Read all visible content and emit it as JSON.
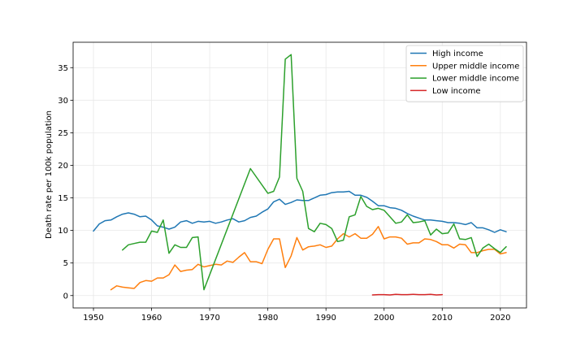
{
  "chart_data": {
    "type": "line",
    "title": "",
    "xlabel": "",
    "ylabel": "Death rate per 100k population",
    "xlim": [
      1946.5,
      2024.5
    ],
    "ylim": [
      -1.9,
      38.9
    ],
    "xticks": [
      1950,
      1960,
      1970,
      1980,
      1990,
      2000,
      2010,
      2020
    ],
    "yticks": [
      0,
      5,
      10,
      15,
      20,
      25,
      30,
      35
    ],
    "grid": true,
    "legend_position": "top-right",
    "series": [
      {
        "name": "High income",
        "color": "#1f77b4",
        "x": [
          1950,
          1951,
          1952,
          1953,
          1954,
          1955,
          1956,
          1957,
          1958,
          1959,
          1960,
          1961,
          1962,
          1963,
          1964,
          1965,
          1966,
          1967,
          1968,
          1969,
          1970,
          1971,
          1972,
          1973,
          1974,
          1975,
          1976,
          1977,
          1978,
          1979,
          1980,
          1981,
          1982,
          1983,
          1984,
          1985,
          1986,
          1987,
          1988,
          1989,
          1990,
          1991,
          1992,
          1993,
          1994,
          1995,
          1996,
          1997,
          1998,
          1999,
          2000,
          2001,
          2002,
          2003,
          2004,
          2005,
          2006,
          2007,
          2008,
          2009,
          2010,
          2011,
          2012,
          2013,
          2014,
          2015,
          2016,
          2017,
          2018,
          2019,
          2020,
          2021
        ],
        "y": [
          9.9,
          11.0,
          11.5,
          11.6,
          12.1,
          12.5,
          12.7,
          12.5,
          12.1,
          12.2,
          11.6,
          10.7,
          10.5,
          10.2,
          10.5,
          11.3,
          11.5,
          11.1,
          11.4,
          11.3,
          11.4,
          11.1,
          11.3,
          11.6,
          11.8,
          11.3,
          11.5,
          12.0,
          12.2,
          12.8,
          13.3,
          14.4,
          14.8,
          14.0,
          14.3,
          14.7,
          14.6,
          14.6,
          15.0,
          15.4,
          15.5,
          15.8,
          15.9,
          15.9,
          16.0,
          15.4,
          15.4,
          15.1,
          14.5,
          13.8,
          13.8,
          13.5,
          13.4,
          13.1,
          12.6,
          12.2,
          11.9,
          11.6,
          11.6,
          11.5,
          11.4,
          11.2,
          11.2,
          11.1,
          10.9,
          11.2,
          10.4,
          10.4,
          10.1,
          9.7,
          10.1,
          9.8
        ]
      },
      {
        "name": "Upper middle income",
        "color": "#ff7f0e",
        "x": [
          1953,
          1954,
          1955,
          1956,
          1957,
          1958,
          1959,
          1960,
          1961,
          1962,
          1963,
          1964,
          1965,
          1966,
          1967,
          1968,
          1969,
          1970,
          1971,
          1972,
          1973,
          1974,
          1975,
          1976,
          1977,
          1978,
          1979,
          1980,
          1981,
          1982,
          1983,
          1984,
          1985,
          1986,
          1987,
          1988,
          1989,
          1990,
          1991,
          1992,
          1993,
          1994,
          1995,
          1996,
          1997,
          1998,
          1999,
          2000,
          2001,
          2002,
          2003,
          2004,
          2005,
          2006,
          2007,
          2008,
          2009,
          2010,
          2011,
          2012,
          2013,
          2014,
          2015,
          2016,
          2017,
          2018,
          2019,
          2020,
          2021
        ],
        "y": [
          0.9,
          1.5,
          1.3,
          1.2,
          1.1,
          2.0,
          2.3,
          2.2,
          2.7,
          2.7,
          3.2,
          4.7,
          3.7,
          3.9,
          4.0,
          4.8,
          4.4,
          4.6,
          4.8,
          4.7,
          5.3,
          5.1,
          5.9,
          6.6,
          5.2,
          5.2,
          4.9,
          7.1,
          8.7,
          8.7,
          4.3,
          6.1,
          8.9,
          7.0,
          7.5,
          7.6,
          7.8,
          7.4,
          7.6,
          8.7,
          9.5,
          9.0,
          9.5,
          8.8,
          8.8,
          9.4,
          10.6,
          8.7,
          9.0,
          9.0,
          8.8,
          7.9,
          8.1,
          8.1,
          8.7,
          8.6,
          8.3,
          7.8,
          7.8,
          7.3,
          7.9,
          7.8,
          6.6,
          6.6,
          6.9,
          7.1,
          7.1,
          6.4,
          6.6
        ]
      },
      {
        "name": "Lower middle income",
        "color": "#2ca02c",
        "x": [
          1955,
          1956,
          1957,
          1958,
          1959,
          1960,
          1961,
          1962,
          1963,
          1964,
          1965,
          1966,
          1967,
          1968,
          1969,
          1977,
          1980,
          1981,
          1982,
          1983,
          1984,
          1985,
          1986,
          1987,
          1988,
          1989,
          1990,
          1991,
          1992,
          1993,
          1994,
          1995,
          1996,
          1997,
          1998,
          1999,
          2000,
          2001,
          2002,
          2003,
          2004,
          2005,
          2006,
          2007,
          2008,
          2009,
          2010,
          2011,
          2012,
          2013,
          2014,
          2015,
          2016,
          2017,
          2018,
          2019,
          2020,
          2021
        ],
        "y": [
          7.0,
          7.8,
          8.0,
          8.2,
          8.2,
          9.9,
          9.7,
          11.6,
          6.5,
          7.8,
          7.4,
          7.4,
          8.9,
          9.0,
          0.9,
          19.5,
          15.7,
          16.0,
          18.2,
          36.3,
          37.0,
          18.0,
          16.0,
          10.3,
          9.8,
          11.1,
          10.9,
          10.3,
          8.3,
          8.5,
          12.1,
          12.4,
          15.2,
          13.7,
          13.2,
          13.4,
          13.1,
          12.1,
          11.1,
          11.3,
          12.4,
          11.2,
          11.3,
          11.5,
          9.3,
          10.2,
          9.5,
          9.6,
          11.0,
          8.7,
          8.6,
          8.9,
          6.0,
          7.3,
          7.9,
          7.2,
          6.6,
          7.5
        ]
      },
      {
        "name": "Low income",
        "color": "#d62728",
        "x": [
          1998,
          1999,
          2000,
          2001,
          2002,
          2003,
          2004,
          2005,
          2006,
          2007,
          2008,
          2009,
          2010
        ],
        "y": [
          0.1,
          0.15,
          0.15,
          0.1,
          0.2,
          0.15,
          0.15,
          0.2,
          0.15,
          0.15,
          0.2,
          0.1,
          0.15
        ]
      }
    ]
  }
}
